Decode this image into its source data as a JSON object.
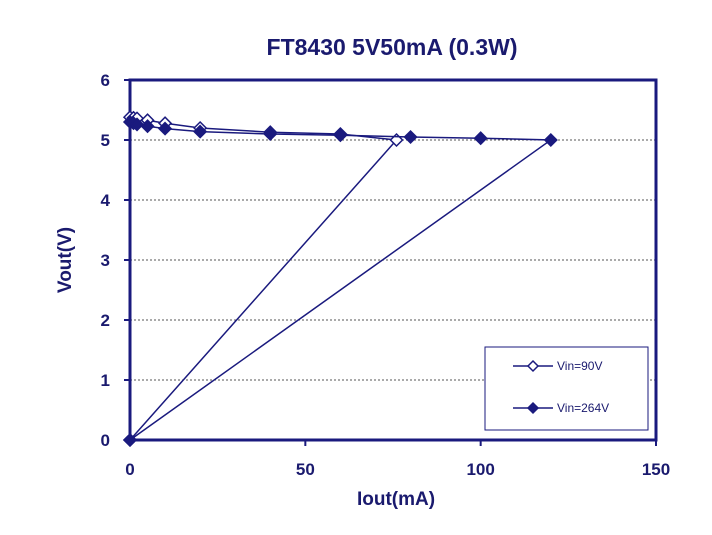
{
  "chart_data": {
    "type": "line",
    "title": "FT8430 5V50mA (0.3W)",
    "xlabel": "Iout(mA)",
    "ylabel": "Vout(V)",
    "xlim": [
      0,
      150
    ],
    "ylim": [
      0,
      6
    ],
    "xticks": [
      "0",
      "50",
      "100",
      "150"
    ],
    "yticks": [
      "0",
      "1",
      "2",
      "3",
      "4",
      "5",
      "6"
    ],
    "grid": "horizontal dashed",
    "legend_position": "bottom-right",
    "series": [
      {
        "name": "Vin=90V",
        "marker": "open-diamond",
        "color": "#1a1a7e",
        "x": [
          0,
          1,
          2,
          5,
          10,
          20,
          40,
          60,
          76,
          0
        ],
        "y": [
          5.38,
          5.37,
          5.36,
          5.33,
          5.28,
          5.2,
          5.13,
          5.1,
          5.0,
          0
        ]
      },
      {
        "name": "Vin=264V",
        "marker": "filled-diamond",
        "color": "#1a1a7e",
        "x": [
          0,
          1,
          2,
          5,
          10,
          20,
          40,
          60,
          80,
          100,
          120,
          0
        ],
        "y": [
          5.3,
          5.28,
          5.26,
          5.23,
          5.19,
          5.14,
          5.1,
          5.08,
          5.05,
          5.03,
          5.0,
          0
        ]
      }
    ]
  }
}
